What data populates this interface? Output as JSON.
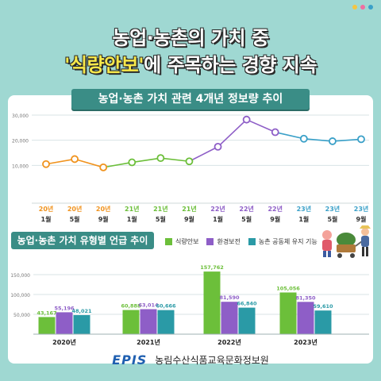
{
  "title_line1": "농업·농촌의 가치 중",
  "title_line2_highlight": "'식량안보'",
  "title_line2_rest": "에 주목하는 경향 지속",
  "colors": {
    "background": "#9fd8d2",
    "banner": "#3a8d86",
    "green": "#6cbf3a",
    "purple": "#8e5ec7",
    "teal": "#2a9aa6",
    "orange": "#f0931e",
    "blue": "#3aa0c8"
  },
  "chart_data": [
    {
      "type": "line",
      "title": "농업·농촌 가치 관련 4개년 정보량 추이",
      "x_year_labels": [
        "20년",
        "20년",
        "20년",
        "21년",
        "21년",
        "21년",
        "22년",
        "22년",
        "22년",
        "23년",
        "23년",
        "23년"
      ],
      "x_month_labels": [
        "1월",
        "5월",
        "9월",
        "1월",
        "5월",
        "9월",
        "1월",
        "5월",
        "9월",
        "1월",
        "5월",
        "9월"
      ],
      "values": [
        10500,
        12500,
        9200,
        11200,
        12900,
        11600,
        17400,
        28200,
        23200,
        20600,
        19600,
        20400
      ],
      "ylim": [
        0,
        30000
      ],
      "yticks": [
        10000,
        20000,
        30000
      ],
      "ytick_labels": [
        "10,000",
        "20,000",
        "30,000"
      ],
      "grid": true
    },
    {
      "type": "bar",
      "title": "농업·농촌 가치 유형별 언급 추이",
      "categories": [
        "2020년",
        "2021년",
        "2022년",
        "2023년"
      ],
      "series": [
        {
          "name": "식량안보",
          "values": [
            43167,
            60888,
            157762,
            105056
          ],
          "labels": [
            "43,167",
            "60,888",
            "157,762",
            "105,056"
          ]
        },
        {
          "name": "환경보전",
          "values": [
            55196,
            63014,
            81590,
            81350
          ],
          "labels": [
            "55,196",
            "63,014",
            "81,590",
            "81,350"
          ]
        },
        {
          "name": "농촌 공동체 유지 기능",
          "values": [
            48021,
            60666,
            66840,
            59610
          ],
          "labels": [
            "48,021",
            "60,666",
            "66,840",
            "59,610"
          ]
        }
      ],
      "ylim": [
        0,
        150000
      ],
      "yticks": [
        50000,
        100000,
        150000
      ],
      "ytick_labels": [
        "50,000",
        "100,000",
        "150,000"
      ],
      "legend": "top-right",
      "grid": true
    }
  ],
  "footer": {
    "logo": "EPIS",
    "org_name": "농림수산식품교육문화정보원"
  }
}
